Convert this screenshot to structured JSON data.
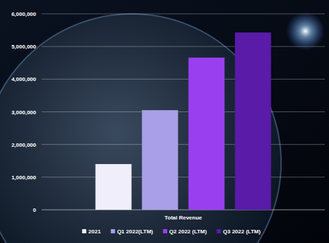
{
  "chart_data": {
    "type": "bar",
    "categories": [
      "Total Revenue"
    ],
    "series": [
      {
        "name": "2021",
        "color": "#f0eefa",
        "values": [
          1400000
        ]
      },
      {
        "name": "Q1 2022(LTM)",
        "color": "#a99fe8",
        "values": [
          3050000
        ]
      },
      {
        "name": "Q2 2022 (LTM)",
        "color": "#9a3ff0",
        "values": [
          4660000
        ]
      },
      {
        "name": "Q3 2022 (LTM)",
        "color": "#5a1ba8",
        "values": [
          5430000
        ]
      }
    ],
    "ylim": [
      0,
      6000000
    ],
    "yticks": [
      0,
      {
        "value": 1000000,
        "label": "1,000,000"
      },
      {
        "value": 2000000,
        "label": "2,000,000"
      },
      {
        "value": 3000000,
        "label": "3,000,000"
      },
      {
        "value": 4000000,
        "label": "4,000,000"
      },
      {
        "value": 5000000,
        "label": "5,000,000"
      },
      {
        "value": 6000000,
        "label": "6,000,000"
      }
    ],
    "grid": true,
    "legend": "bottom"
  }
}
